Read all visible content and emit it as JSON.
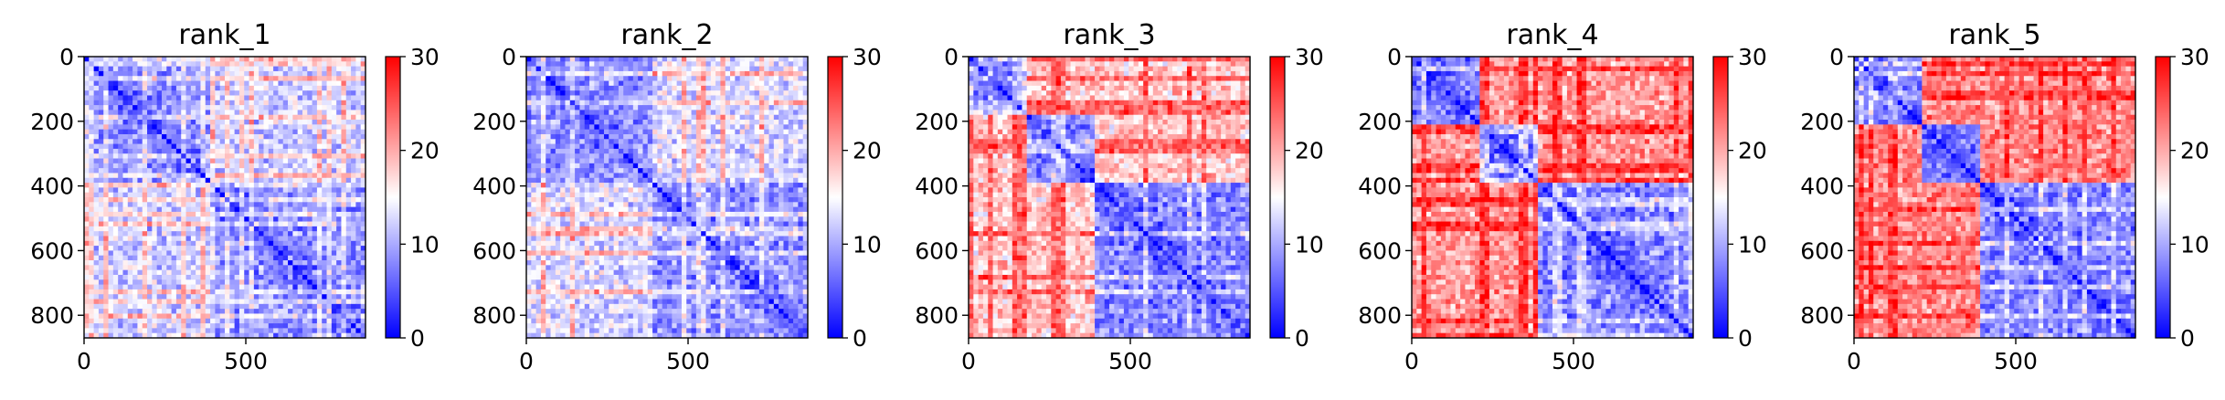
{
  "chart_data": [
    {
      "type": "heatmap",
      "title": "rank_1",
      "x_ticks": [
        0,
        500
      ],
      "y_ticks": [
        0,
        200,
        400,
        600,
        800
      ],
      "xlim": [
        0,
        870
      ],
      "ylim": [
        870,
        0
      ],
      "colorbar": {
        "ticks": [
          0,
          10,
          20,
          30
        ],
        "range": [
          0,
          30
        ],
        "colormap": "bwr"
      },
      "blocks": [
        0,
        390,
        870
      ],
      "values": {
        "diagonal": 0,
        "within_block": 6,
        "cross_block": 12,
        "stripe": 18
      }
    },
    {
      "type": "heatmap",
      "title": "rank_2",
      "x_ticks": [
        0,
        500
      ],
      "y_ticks": [
        0,
        200,
        400,
        600,
        800
      ],
      "xlim": [
        0,
        870
      ],
      "ylim": [
        870,
        0
      ],
      "colorbar": {
        "ticks": [
          0,
          10,
          20,
          30
        ],
        "range": [
          0,
          30
        ],
        "colormap": "bwr"
      },
      "blocks": [
        0,
        390,
        870
      ],
      "values": {
        "diagonal": 0,
        "within_block": 6,
        "cross_block": 13,
        "stripe": 19
      }
    },
    {
      "type": "heatmap",
      "title": "rank_3",
      "x_ticks": [
        0,
        500
      ],
      "y_ticks": [
        0,
        200,
        400,
        600,
        800
      ],
      "xlim": [
        0,
        870
      ],
      "ylim": [
        870,
        0
      ],
      "colorbar": {
        "ticks": [
          0,
          10,
          20,
          30
        ],
        "range": [
          0,
          30
        ],
        "colormap": "bwr"
      },
      "blocks": [
        0,
        180,
        390,
        870
      ],
      "values": {
        "diagonal": 0,
        "within_block": 5,
        "cross_block": 18,
        "stripe": 24
      }
    },
    {
      "type": "heatmap",
      "title": "rank_4",
      "x_ticks": [
        0,
        500
      ],
      "y_ticks": [
        0,
        200,
        400,
        600,
        800
      ],
      "xlim": [
        0,
        870
      ],
      "ylim": [
        870,
        0
      ],
      "colorbar": {
        "ticks": [
          0,
          10,
          20,
          30
        ],
        "range": [
          0,
          30
        ],
        "colormap": "bwr"
      },
      "blocks": [
        0,
        210,
        390,
        870
      ],
      "values": {
        "diagonal": 0,
        "within_block": 5,
        "cross_block": 21,
        "stripe": 27
      }
    },
    {
      "type": "heatmap",
      "title": "rank_5",
      "x_ticks": [
        0,
        500
      ],
      "y_ticks": [
        0,
        200,
        400,
        600,
        800
      ],
      "xlim": [
        0,
        870
      ],
      "ylim": [
        870,
        0
      ],
      "colorbar": {
        "ticks": [
          0,
          10,
          20,
          30
        ],
        "range": [
          0,
          30
        ],
        "colormap": "bwr"
      },
      "blocks": [
        0,
        210,
        390,
        870
      ],
      "values": {
        "diagonal": 0,
        "within_block": 5,
        "cross_block": 22,
        "stripe": 27
      }
    }
  ]
}
